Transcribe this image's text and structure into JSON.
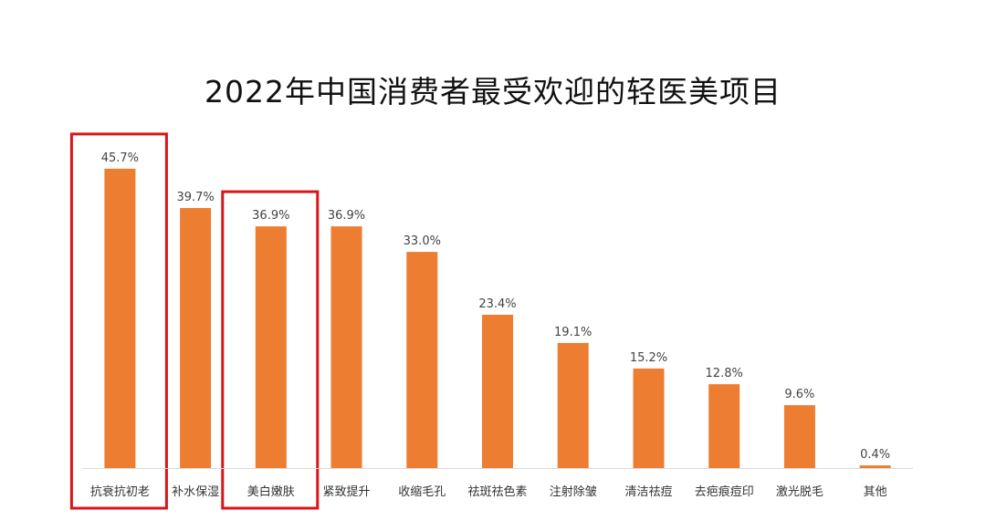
{
  "chart_data": {
    "type": "bar",
    "title": "2022年中国消费者最受欢迎的轻医美项目",
    "xlabel": "",
    "ylabel": "",
    "ylim": [
      0,
      50
    ],
    "grid": false,
    "value_suffix": "%",
    "categories": [
      "抗衰抗初老",
      "补水保湿",
      "美白嫩肤",
      "紧致提升",
      "收缩毛孔",
      "祛斑祛色素",
      "注射除皱",
      "清洁祛痘",
      "去疤痕痘印",
      "激光脱毛",
      "其他"
    ],
    "values": [
      45.7,
      39.7,
      36.9,
      36.9,
      33.0,
      23.4,
      19.1,
      15.2,
      12.8,
      9.6,
      0.4
    ],
    "highlighted_categories": [
      "抗衰抗初老",
      "美白嫩肤"
    ],
    "colors": {
      "bar": "#ED7D31",
      "highlight": "#d9141a",
      "axis": "#d9d9d9"
    }
  }
}
